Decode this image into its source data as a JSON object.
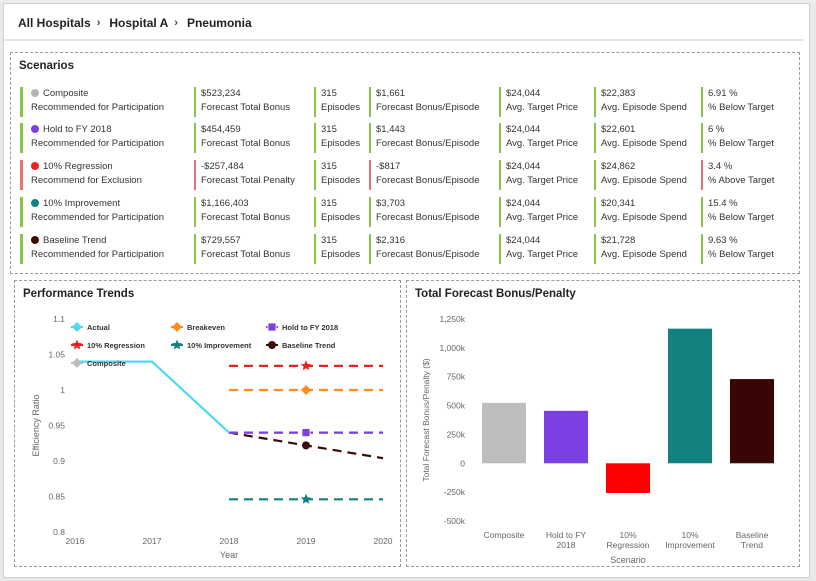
{
  "breadcrumb": {
    "items": [
      {
        "label": "All Hospitals",
        "sep": "›"
      },
      {
        "label": "Hospital A",
        "sep": "›"
      },
      {
        "label": "Pneumonia"
      }
    ]
  },
  "scenarios": {
    "title": "Scenarios",
    "rows": [
      {
        "name": "Composite",
        "dot_color": "#b5b5b5",
        "recommendation": "Recommended for Participation",
        "status": "positive",
        "total": "$523,234",
        "total_label": "Forecast Total Bonus",
        "episodes": "315",
        "episodes_label": "Episodes",
        "per_episode": "$1,661",
        "per_episode_label": "Forecast Bonus/Episode",
        "target_price": "$24,044",
        "target_price_label": "Avg. Target Price",
        "spend": "$22,383",
        "spend_label": "Avg. Episode Spend",
        "pct": "6.91 %",
        "pct_label": "% Below Target"
      },
      {
        "name": "Hold to FY 2018",
        "dot_color": "#7b3fe4",
        "recommendation": "Recommended for Participation",
        "status": "positive",
        "total": "$454,459",
        "total_label": "Forecast Total Bonus",
        "episodes": "315",
        "episodes_label": "Episodes",
        "per_episode": "$1,443",
        "per_episode_label": "Forecast Bonus/Episode",
        "target_price": "$24,044",
        "target_price_label": "Avg. Target Price",
        "spend": "$22,601",
        "spend_label": "Avg. Episode Spend",
        "pct": "6 %",
        "pct_label": "% Below Target"
      },
      {
        "name": "10% Regression",
        "dot_color": "#e8231f",
        "recommendation": "Recommend for Exclusion",
        "status": "negative",
        "total": "-$257,484",
        "total_label": "Forecast Total Penalty",
        "episodes": "315",
        "episodes_label": "Episodes",
        "per_episode": "-$817",
        "per_episode_label": "Forecast Bonus/Episode",
        "target_price": "$24,044",
        "target_price_label": "Avg. Target Price",
        "spend": "$24,862",
        "spend_label": "Avg. Episode Spend",
        "pct": "3.4 %",
        "pct_label": "% Above Target"
      },
      {
        "name": "10% Improvement",
        "dot_color": "#138180",
        "recommendation": "Recommended for Participation",
        "status": "positive",
        "total": "$1,166,403",
        "total_label": "Forecast Total Bonus",
        "episodes": "315",
        "episodes_label": "Episodes",
        "per_episode": "$3,703",
        "per_episode_label": "Forecast Bonus/Episode",
        "target_price": "$24,044",
        "target_price_label": "Avg. Target Price",
        "spend": "$20,341",
        "spend_label": "Avg. Episode Spend",
        "pct": "15.4 %",
        "pct_label": "% Below Target"
      },
      {
        "name": "Baseline Trend",
        "dot_color": "#3a0c0c",
        "recommendation": "Recommended for Participation",
        "status": "positive",
        "total": "$729,557",
        "total_label": "Forecast Total Bonus",
        "episodes": "315",
        "episodes_label": "Episodes",
        "per_episode": "$2,316",
        "per_episode_label": "Forecast Bonus/Episode",
        "target_price": "$24,044",
        "target_price_label": "Avg. Target Price",
        "spend": "$21,728",
        "spend_label": "Avg. Episode Spend",
        "pct": "9.63 %",
        "pct_label": "% Below Target"
      }
    ]
  },
  "performance_trends": {
    "title": "Performance Trends"
  },
  "bonus_penalty": {
    "title": "Total Forecast Bonus/Penalty"
  },
  "chart_data": [
    {
      "type": "line",
      "title": "Performance Trends",
      "xlabel": "Year",
      "ylabel": "Efficiency Ratio",
      "xlim": [
        2016,
        2020
      ],
      "ylim": [
        0.8,
        1.1
      ],
      "x_ticks": [
        "2016",
        "2017",
        "2018",
        "2019",
        "2020"
      ],
      "y_ticks": [
        "0.8",
        "0.85",
        "0.9",
        "0.95",
        "1",
        "1.05",
        "1.1"
      ],
      "grid": false,
      "legend_position": "top-left",
      "series": [
        {
          "name": "Actual",
          "color": "#4dd9f0",
          "style": "solid",
          "marker": "diamond",
          "x": [
            2016,
            2017,
            2018
          ],
          "y": [
            1.04,
            1.04,
            0.94
          ]
        },
        {
          "name": "Breakeven",
          "color": "#ff8c1a",
          "style": "dashed",
          "marker": "diamond",
          "x": [
            2018,
            2019,
            2020
          ],
          "y": [
            1.0,
            1.0,
            1.0
          ]
        },
        {
          "name": "Hold to FY 2018",
          "color": "#7b3fe4",
          "style": "dashed",
          "marker": "square",
          "x": [
            2018,
            2019,
            2020
          ],
          "y": [
            0.94,
            0.94,
            0.94
          ]
        },
        {
          "name": "10% Regression",
          "color": "#e8231f",
          "style": "dashed",
          "marker": "star",
          "x": [
            2018,
            2019,
            2020
          ],
          "y": [
            1.034,
            1.034,
            1.034
          ]
        },
        {
          "name": "10% Improvement",
          "color": "#138180",
          "style": "dashed",
          "marker": "star",
          "x": [
            2018,
            2019,
            2020
          ],
          "y": [
            0.846,
            0.846,
            0.846
          ]
        },
        {
          "name": "Baseline Trend",
          "color": "#3a0c0c",
          "style": "dashed",
          "marker": "circle",
          "x": [
            2018,
            2019,
            2020
          ],
          "y": [
            0.94,
            0.922,
            0.904
          ]
        },
        {
          "name": "Composite",
          "color": "#bdbdbd",
          "style": "dashed",
          "marker": "diamond",
          "x": [
            2018,
            2019,
            2020
          ],
          "y": [
            0.94,
            0.94,
            0.94
          ]
        }
      ]
    },
    {
      "type": "bar",
      "title": "Total Forecast Bonus/Penalty",
      "xlabel": "Scenario",
      "ylabel": "Total Forecast Bonus/Penalty ($)",
      "ylim": [
        -500000,
        1250000
      ],
      "y_ticks": [
        "-500k",
        "-250k",
        "0",
        "250k",
        "500k",
        "750k",
        "1,000k",
        "1,250k"
      ],
      "categories": [
        "Composite",
        "Hold to FY 2018",
        "10% Regression",
        "10% Improvement",
        "Baseline Trend"
      ],
      "values": [
        523234,
        454459,
        -257484,
        1166403,
        729557
      ],
      "colors": [
        "#bdbdbd",
        "#7b3fe4",
        "#ff0000",
        "#138180",
        "#3a0505"
      ]
    }
  ]
}
